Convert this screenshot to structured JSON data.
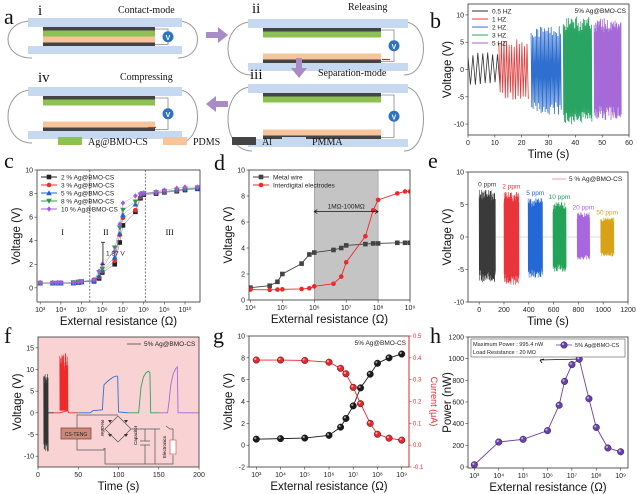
{
  "figure": {
    "panel_labels": [
      "a",
      "b",
      "c",
      "d",
      "e",
      "f",
      "g",
      "h"
    ]
  },
  "diagram": {
    "steps": [
      {
        "numeral": "i",
        "label": "Contact-mode"
      },
      {
        "numeral": "ii",
        "label": "Releasing"
      },
      {
        "numeral": "iii",
        "label": "Separation-mode"
      },
      {
        "numeral": "iv",
        "label": "Compressing"
      }
    ],
    "meter_label": "V",
    "legend": [
      {
        "label": "Ag@BMO-CS",
        "color": "#8dc153"
      },
      {
        "label": "PDMS",
        "color": "#f7c49b"
      },
      {
        "label": "Al",
        "color": "#444444"
      },
      {
        "label": "PMMA",
        "color": "#c6d9f0"
      }
    ]
  },
  "chart_data": [
    {
      "panel": "b",
      "type": "line",
      "xlabel": "Time (s)",
      "ylabel": "Voltage (V)",
      "xlim": [
        0,
        60
      ],
      "ylim": [
        -12,
        12
      ],
      "xscale": "linear",
      "xticks": [
        0,
        10,
        20,
        30,
        40,
        50,
        60
      ],
      "xtick_labels": [
        "0",
        "10",
        "20",
        "30",
        "40",
        "50",
        "60"
      ],
      "yticks": [
        -10,
        -5,
        0,
        5,
        10
      ],
      "ytick_labels": [
        "-10",
        "-5",
        "0",
        "5",
        "10"
      ],
      "annotation": "5% Ag@BMO-CS",
      "legend_position": "top-left",
      "series": [
        {
          "name": "0.5 HZ",
          "color": "#333333",
          "t": [
            0,
            11
          ],
          "freq": 0.5,
          "vmax": 3.2,
          "vmin": -3.2
        },
        {
          "name": "1 HZ",
          "color": "#e23b3b",
          "t": [
            11.5,
            22
          ],
          "freq": 1,
          "vmax": 5.6,
          "vmin": -5.8
        },
        {
          "name": "2 HZ",
          "color": "#2f6fd0",
          "t": [
            23.5,
            34.5
          ],
          "freq": 2,
          "vmax": 8.2,
          "vmin": -8.3
        },
        {
          "name": "3 HZ",
          "color": "#2aa463",
          "t": [
            35.5,
            46
          ],
          "freq": 3,
          "vmax": 9.7,
          "vmin": -10.5
        },
        {
          "name": "5 HZ",
          "color": "#a66ad8",
          "t": [
            47,
            57
          ],
          "freq": 5,
          "vmax": 9.4,
          "vmin": -9.3
        }
      ]
    },
    {
      "panel": "c",
      "type": "line",
      "xlabel": "External resistance (Ω)",
      "ylabel": "Voltage (V)",
      "xlim": [
        700,
        53000000000
      ],
      "ylim": [
        -1.2,
        10
      ],
      "xscale": "log",
      "xticks": [
        1000.0,
        10000.0,
        100000.0,
        1000000.0,
        10000000.0,
        100000000.0,
        1000000000.0,
        10000000000.0
      ],
      "xtick_labels": [
        "10³",
        "10⁴",
        "10⁵",
        "10⁶",
        "10⁷",
        "10⁸",
        "10⁹",
        "10¹⁰"
      ],
      "yticks": [
        0,
        2,
        4,
        6,
        8,
        10
      ],
      "ytick_labels": [
        "0",
        "2",
        "4",
        "6",
        "8",
        "10"
      ],
      "legend_position": "top-left",
      "x": [
        1000.0,
        4000.0,
        7000.0,
        10000.0,
        40000.0,
        70000.0,
        100000.0,
        400000.0,
        700000.0,
        1000000.0,
        4000000.0,
        7000000.0,
        10000000.0,
        40000000.0,
        70000000.0,
        100000000.0,
        400000000.0,
        1000000000.0,
        4000000000.0,
        10000000000.0,
        40000000000.0
      ],
      "series": [
        {
          "name": "2 % Ag@BMO-CS",
          "color": "#222222",
          "marker": "square",
          "y": [
            0.4,
            0.4,
            0.4,
            0.4,
            0.4,
            0.45,
            0.5,
            0.55,
            0.8,
            1.3,
            2.0,
            3.85,
            5.3,
            6.45,
            7.6,
            7.9,
            8.0,
            8.1,
            8.2,
            8.3,
            8.4
          ]
        },
        {
          "name": "3 % Ag@BMO-CS",
          "color": "#e8322f",
          "marker": "circle",
          "y": [
            0.4,
            0.4,
            0.4,
            0.4,
            0.4,
            0.45,
            0.5,
            0.6,
            0.9,
            1.4,
            2.3,
            4.5,
            5.95,
            6.6,
            7.7,
            7.95,
            8.05,
            8.1,
            8.25,
            8.35,
            8.45
          ]
        },
        {
          "name": "5 % Ag@BMO-CS",
          "color": "#1f5fd6",
          "marker": "triangle",
          "y": [
            0.4,
            0.4,
            0.4,
            0.4,
            0.4,
            0.45,
            0.5,
            0.6,
            1.0,
            1.5,
            2.6,
            4.6,
            6.2,
            7.1,
            7.8,
            8.0,
            8.1,
            8.15,
            8.3,
            8.4,
            8.45
          ]
        },
        {
          "name": "8 % Ag@BMO-CS",
          "color": "#2a9a4a",
          "marker": "invtriangle",
          "y": [
            0.4,
            0.4,
            0.4,
            0.4,
            0.45,
            0.5,
            0.55,
            0.65,
            1.3,
            1.6,
            3.4,
            5.1,
            6.6,
            7.3,
            7.9,
            8.0,
            8.1,
            8.2,
            8.3,
            8.4,
            8.5
          ]
        },
        {
          "name": "10 % Ag@BMO-CS",
          "color": "#a45be0",
          "marker": "diamond",
          "y": [
            0.45,
            0.45,
            0.45,
            0.45,
            0.45,
            0.5,
            0.55,
            0.7,
            1.4,
            2.0,
            3.1,
            5.4,
            7.2,
            7.8,
            8.0,
            8.05,
            8.15,
            8.3,
            8.45,
            8.55,
            8.55
          ]
        }
      ],
      "region_boundaries": [
        250000,
        120000000
      ],
      "regions": [
        {
          "label": "I",
          "x": 12000
        },
        {
          "label": "II",
          "x": 1500000
        },
        {
          "label": "III",
          "x": 1800000000
        }
      ],
      "annotation": {
        "label": "1.87 V",
        "x": 10000000,
        "y_low": 2.0,
        "y_high": 3.87
      }
    },
    {
      "panel": "d",
      "type": "line",
      "xlabel": "External resistance (Ω)",
      "ylabel": "Voltage (V)",
      "xlim": [
        9000,
        1000000000
      ],
      "ylim": [
        0,
        10
      ],
      "xscale": "log",
      "xticks": [
        10000.0,
        100000.0,
        1000000.0,
        10000000.0,
        100000000.0,
        1000000000.0
      ],
      "xtick_labels": [
        "10⁴",
        "10⁵",
        "10⁶",
        "10⁷",
        "10⁸",
        "10⁹"
      ],
      "yticks": [
        0,
        2,
        4,
        6,
        8,
        10
      ],
      "ytick_labels": [
        "0",
        "2",
        "4",
        "6",
        "8",
        "10"
      ],
      "legend_position": "top-left",
      "x": [
        10000.0,
        40000.0,
        70000.0,
        100000.0,
        400000.0,
        700000.0,
        1000000.0,
        4000000.0,
        7000000.0,
        10000000.0,
        40000000.0,
        70000000.0,
        100000000.0,
        400000000.0,
        700000000.0,
        1000000000.0
      ],
      "series": [
        {
          "name": "Metal wire",
          "color": "#444444",
          "marker": "square",
          "y": [
            0.95,
            1.1,
            1.4,
            2.0,
            2.8,
            3.5,
            3.65,
            3.85,
            4.0,
            4.2,
            4.3,
            4.35,
            4.35,
            4.4,
            4.4,
            4.4
          ]
        },
        {
          "name": "Interdigital electrodes",
          "color": "#f0282a",
          "marker": "circle",
          "y": [
            0.8,
            0.78,
            0.8,
            0.82,
            0.85,
            0.9,
            1.05,
            1.25,
            1.8,
            2.9,
            4.9,
            6.9,
            7.7,
            8.2,
            8.35,
            8.35
          ]
        }
      ],
      "shaded_range": {
        "from": 1000000,
        "to": 100000000,
        "label": "1MΩ-100MΩ",
        "y": 6.8
      }
    },
    {
      "panel": "e",
      "type": "line",
      "xlabel": "Time (s)",
      "ylabel": "Voltage (V)",
      "xlim": [
        -90,
        1200
      ],
      "ylim": [
        -10,
        10
      ],
      "xscale": "linear",
      "xticks": [
        0,
        200,
        400,
        600,
        800,
        1000,
        1200
      ],
      "xtick_labels": [
        "0",
        "200",
        "400",
        "600",
        "800",
        "1000",
        "1200"
      ],
      "yticks": [
        -10,
        -5,
        0,
        5,
        10
      ],
      "ytick_labels": [
        "-10",
        "-5",
        "0",
        "5",
        "10"
      ],
      "legend": "5 % Ag@BMO-CS",
      "legend_position": "top-right",
      "series": [
        {
          "name": "0 ppm",
          "color": "#3a3a3a",
          "t": [
            0,
            130
          ],
          "vmax": 7.3,
          "vmin": -7.0
        },
        {
          "name": "2 ppm",
          "color": "#e8343a",
          "t": [
            200,
            320
          ],
          "vmax": 7.0,
          "vmin": -7.4
        },
        {
          "name": "5 ppm",
          "color": "#2468d6",
          "t": [
            395,
            510
          ],
          "vmax": 6.0,
          "vmin": -6.3
        },
        {
          "name": "10 ppm",
          "color": "#23a25a",
          "t": [
            595,
            700
          ],
          "vmax": 5.4,
          "vmin": -5.4
        },
        {
          "name": "20 ppm",
          "color": "#a866e0",
          "t": [
            790,
            890
          ],
          "vmax": 3.8,
          "vmin": -3.5
        },
        {
          "name": "50 ppm",
          "color": "#d7a215",
          "t": [
            980,
            1085
          ],
          "vmax": 3.0,
          "vmin": -3.0
        }
      ]
    },
    {
      "panel": "f",
      "type": "line",
      "xlabel": "Time (s)",
      "ylabel": "Voltage (V)",
      "xlim": [
        0,
        200
      ],
      "ylim": [
        -12.5,
        17.5
      ],
      "xscale": "linear",
      "xticks": [
        0,
        50,
        100,
        150,
        200
      ],
      "xtick_labels": [
        "0",
        "50",
        "100",
        "150",
        "200"
      ],
      "yticks": [
        -10,
        -5,
        0,
        5,
        10,
        15
      ],
      "ytick_labels": [
        "-10",
        "-5",
        "0",
        "5",
        "10",
        "15"
      ],
      "legend": "5% Ag@BMO-CS",
      "legend_position": "top-right",
      "background": "#f9d3d3",
      "bursts": [
        {
          "color": "#333333",
          "t": [
            7,
            12.5
          ],
          "vmax": 9.0,
          "vmin": -9.0
        },
        {
          "color": "#ee2a2a",
          "t": [
            27,
            37
          ],
          "vmax": 13.8,
          "vmin": 0.5
        }
      ],
      "series": [
        {
          "color": "#333333",
          "x": [
            12.5,
            20
          ],
          "y": [
            0,
            0
          ]
        },
        {
          "color": "#ee2a2a",
          "x": [
            20,
            27,
            37,
            38,
            50
          ],
          "y": [
            0,
            0,
            0.5,
            0,
            0
          ]
        },
        {
          "color": "#2f6fd0",
          "x": [
            50,
            65,
            68,
            80,
            81,
            82,
            86,
            90,
            94,
            98,
            99,
            100,
            112
          ],
          "y": [
            0,
            0,
            0.5,
            0.7,
            4,
            6.5,
            7.2,
            7.8,
            8.3,
            8.5,
            8.3,
            0.2,
            0
          ]
        },
        {
          "color": "#2aa463",
          "x": [
            112,
            125,
            126,
            128,
            131,
            134,
            137,
            139,
            140,
            150
          ],
          "y": [
            0,
            0,
            2,
            6,
            8.3,
            9.2,
            9.6,
            9.3,
            0,
            0
          ]
        },
        {
          "color": "#a66ad8",
          "x": [
            150,
            161,
            163,
            165,
            168,
            171,
            173,
            174,
            200
          ],
          "y": [
            0,
            0,
            3,
            6.5,
            9,
            10.2,
            10.6,
            0,
            0
          ]
        }
      ],
      "inset": {
        "source": "CS-TENG",
        "rectifier": "Rectifier",
        "capacitor": "Capacitor",
        "load": "Electronics"
      }
    },
    {
      "panel": "g",
      "type": "line",
      "xlabel": "External resistance (Ω)",
      "ylabel": "Voltage (V)",
      "ylabel_right": "Current (μA)",
      "xlim": [
        500,
        2000000000
      ],
      "ylim": [
        -2,
        10
      ],
      "ylim_right": [
        -0.1,
        0.5
      ],
      "xscale": "log",
      "xticks": [
        1000.0,
        10000.0,
        100000.0,
        1000000.0,
        10000000.0,
        100000000.0,
        1000000000.0
      ],
      "xtick_labels": [
        "10³",
        "10⁴",
        "10⁵",
        "10⁶",
        "10⁷",
        "10⁸",
        "10⁹"
      ],
      "yticks": [
        -2,
        0,
        2,
        4,
        6,
        8,
        10
      ],
      "ytick_labels": [
        "-2",
        "0",
        "2",
        "4",
        "6",
        "8",
        "10"
      ],
      "yticks_right": [
        -0.1,
        0,
        0.1,
        0.2,
        0.3,
        0.4,
        0.5
      ],
      "ytick_labels_right": [
        "-0.1",
        "0.0",
        "0.1",
        "0.2",
        "0.3",
        "0.4",
        "0.5"
      ],
      "annotation": "5% Ag@BMO-CS",
      "x": [
        1000.0,
        10000.0,
        100000.0,
        1000000.0,
        3000000.0,
        5000000.0,
        10000000.0,
        20000000.0,
        50000000.0,
        100000000.0,
        300000000.0,
        1000000000.0
      ],
      "series": [
        {
          "name": "Voltage",
          "axis": "left",
          "color": "#1a1a1a",
          "marker": "sphere",
          "y": [
            0.55,
            0.6,
            0.65,
            0.9,
            1.65,
            2.45,
            3.6,
            5.25,
            6.5,
            7.5,
            8.0,
            8.35
          ]
        },
        {
          "name": "Current",
          "axis": "right",
          "color": "#e8262a",
          "marker": "sphere",
          "y": [
            0.39,
            0.39,
            0.388,
            0.38,
            0.352,
            0.327,
            0.265,
            0.19,
            0.1,
            0.05,
            0.032,
            0.023
          ]
        }
      ],
      "right_axis_color": "#e8262a"
    },
    {
      "panel": "h",
      "type": "line",
      "xlabel": "External resistance (Ω)",
      "ylabel": "Power (nW)",
      "xlim": [
        550,
        2000000000
      ],
      "ylim": [
        -10,
        1200
      ],
      "xscale": "log",
      "xticks": [
        1000.0,
        10000.0,
        100000.0,
        1000000.0,
        10000000.0,
        100000000.0,
        1000000000.0
      ],
      "xtick_labels": [
        "10³",
        "10⁴",
        "10⁵",
        "10⁶",
        "10⁷",
        "10⁸",
        "10⁹"
      ],
      "yticks": [
        0,
        200,
        400,
        600,
        800,
        1000,
        1200
      ],
      "ytick_labels": [
        "0",
        "200",
        "400",
        "600",
        "800",
        "1000",
        "1200"
      ],
      "annotation_lines": [
        "Maximum Power : 995.4 nW",
        "Load Resistance : 20 MΩ"
      ],
      "legend_position": "top-right",
      "x": [
        1000.0,
        10000.0,
        100000.0,
        1000000.0,
        3000000.0,
        5000000.0,
        10000000.0,
        20000000.0,
        50000000.0,
        100000000.0,
        300000000.0,
        1000000000.0
      ],
      "series": [
        {
          "name": "5% Ag@BMO-CS",
          "color": "#6c3fb0",
          "marker": "sphere",
          "y": [
            20,
            230,
            255,
            335,
            570,
            790,
            945,
            995.4,
            630,
            365,
            175,
            140
          ]
        }
      ]
    }
  ]
}
